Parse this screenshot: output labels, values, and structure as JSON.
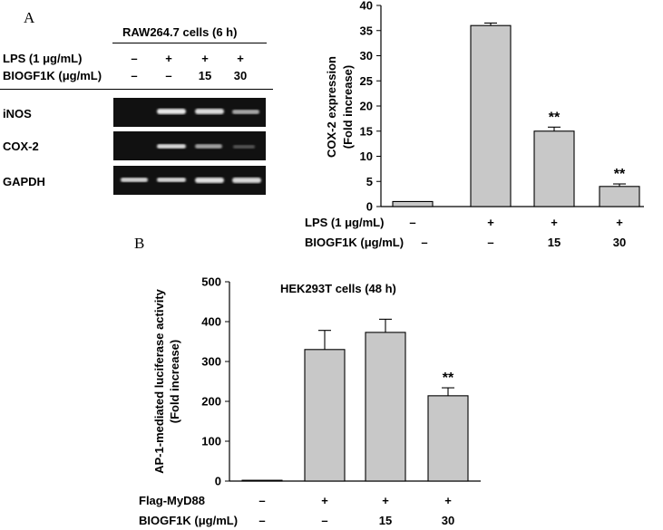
{
  "panel_a": {
    "letter": "A",
    "western": {
      "header": "RAW264.7 cells (6 h)",
      "rows": [
        {
          "label": "LPS (1 μg/mL)",
          "values": [
            "–",
            "+",
            "+",
            "+"
          ]
        },
        {
          "label": "BIOGF1K (μg/mL)",
          "values": [
            "–",
            "–",
            "15",
            "30"
          ]
        }
      ],
      "bands": [
        "iNOS",
        "COX-2",
        "GAPDH"
      ]
    }
  },
  "panel_b": {
    "letter": "B"
  },
  "chart_data": [
    {
      "type": "bar",
      "ylabel": "COX-2 expression (Fold increase)",
      "ylabel_lines": [
        "COX-2 expression",
        "(Fold increase)"
      ],
      "ylim": [
        0,
        40
      ],
      "yticks": [
        0,
        5,
        10,
        15,
        20,
        25,
        30,
        35,
        40
      ],
      "values": [
        1,
        36,
        15,
        4
      ],
      "errors": [
        0,
        0.5,
        0.8,
        0.5
      ],
      "annotations": [
        "",
        "",
        "**",
        "**"
      ],
      "conditions": [
        {
          "label": "LPS (1 μg/mL)",
          "values": [
            "–",
            "+",
            "+",
            "+"
          ]
        },
        {
          "label": "BIOGF1K (μg/mL)",
          "values": [
            "–",
            "–",
            "15",
            "30"
          ]
        }
      ]
    },
    {
      "type": "bar",
      "title": "HEK293T cells (48 h)",
      "ylabel": "AP-1-mediated luciferase activity (Fold increase)",
      "ylabel_lines": [
        "AP-1-mediated luciferase activity",
        "(Fold increase)"
      ],
      "ylim": [
        0,
        500
      ],
      "yticks": [
        0,
        100,
        200,
        300,
        400,
        500
      ],
      "values": [
        2,
        330,
        373,
        214
      ],
      "errors": [
        0,
        48,
        33,
        20
      ],
      "annotations": [
        "",
        "",
        "",
        "**"
      ],
      "conditions": [
        {
          "label": "Flag-MyD88",
          "values": [
            "–",
            "+",
            "+",
            "+"
          ]
        },
        {
          "label": "BIOGF1K (μg/mL)",
          "values": [
            "–",
            "–",
            "15",
            "30"
          ]
        }
      ]
    }
  ]
}
